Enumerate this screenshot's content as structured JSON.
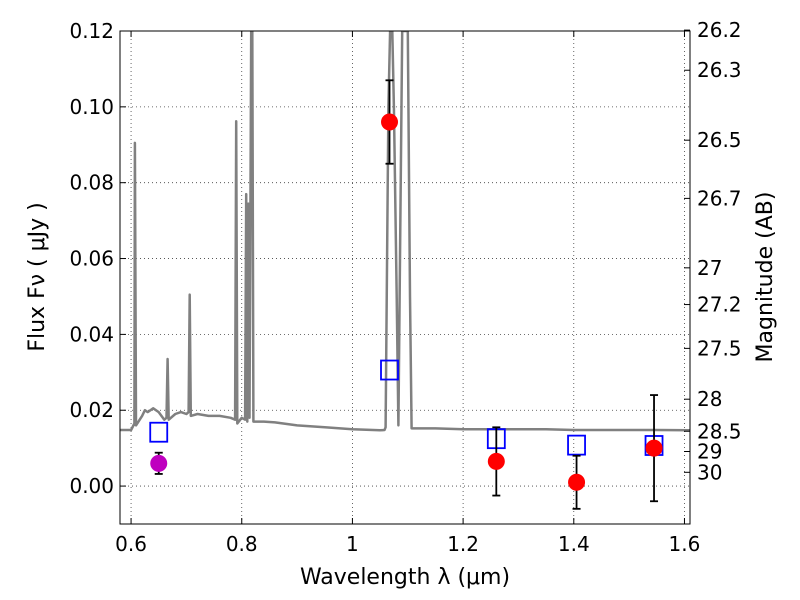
{
  "chart_data": {
    "type": "scatter",
    "xlabel": "Wavelength  λ (μm)",
    "ylabel": "Flux  Fν  ( μJy )",
    "ylabel_right": "Magnitude (AB)",
    "xlim": [
      0.58,
      1.61
    ],
    "ylim": [
      -0.01,
      0.12
    ],
    "grid": true,
    "x_ticks": [
      {
        "value": 0.6,
        "label": "0.6"
      },
      {
        "value": 0.8,
        "label": "0.8"
      },
      {
        "value": 1.0,
        "label": "1"
      },
      {
        "value": 1.2,
        "label": "1.2"
      },
      {
        "value": 1.4,
        "label": "1.4"
      },
      {
        "value": 1.6,
        "label": "1.6"
      }
    ],
    "y_ticks": [
      {
        "value": 0.0,
        "label": "0.00"
      },
      {
        "value": 0.02,
        "label": "0.02"
      },
      {
        "value": 0.04,
        "label": "0.04"
      },
      {
        "value": 0.06,
        "label": "0.06"
      },
      {
        "value": 0.08,
        "label": "0.08"
      },
      {
        "value": 0.1,
        "label": "0.10"
      },
      {
        "value": 0.12,
        "label": "0.12"
      }
    ],
    "right_ticks": [
      {
        "mag": 26.2,
        "label": "26.2"
      },
      {
        "mag": 26.3,
        "label": "26.3"
      },
      {
        "mag": 26.5,
        "label": "26.5"
      },
      {
        "mag": 26.7,
        "label": "26.7"
      },
      {
        "mag": 27.0,
        "label": "27"
      },
      {
        "mag": 27.2,
        "label": "27.2"
      },
      {
        "mag": 27.5,
        "label": "27.5"
      },
      {
        "mag": 28.0,
        "label": "28"
      },
      {
        "mag": 28.5,
        "label": "28.5"
      },
      {
        "mag": 29.0,
        "label": "29"
      },
      {
        "mag": 30.0,
        "label": "30"
      }
    ],
    "series": [
      {
        "kind": "line",
        "color": "#808080",
        "points": [
          [
            0.58,
            0.0148
          ],
          [
            0.6,
            0.0148
          ],
          [
            0.606,
            0.0165
          ],
          [
            0.607,
            0.0905
          ],
          [
            0.609,
            0.016
          ],
          [
            0.62,
            0.0185
          ],
          [
            0.625,
            0.02
          ],
          [
            0.63,
            0.0195
          ],
          [
            0.64,
            0.0205
          ],
          [
            0.65,
            0.0195
          ],
          [
            0.66,
            0.0175
          ],
          [
            0.664,
            0.018
          ],
          [
            0.666,
            0.0335
          ],
          [
            0.668,
            0.0175
          ],
          [
            0.68,
            0.019
          ],
          [
            0.69,
            0.0195
          ],
          [
            0.7,
            0.019
          ],
          [
            0.704,
            0.0195
          ],
          [
            0.706,
            0.0505
          ],
          [
            0.708,
            0.0185
          ],
          [
            0.72,
            0.019
          ],
          [
            0.74,
            0.0185
          ],
          [
            0.76,
            0.0185
          ],
          [
            0.78,
            0.018
          ],
          [
            0.788,
            0.0175
          ],
          [
            0.79,
            0.0962
          ],
          [
            0.792,
            0.0165
          ],
          [
            0.8,
            0.018
          ],
          [
            0.806,
            0.0175
          ],
          [
            0.808,
            0.077
          ],
          [
            0.81,
            0.017
          ],
          [
            0.812,
            0.0745
          ],
          [
            0.814,
            0.018
          ],
          [
            0.817,
            0.12
          ],
          [
            0.819,
            0.12
          ],
          [
            0.821,
            0.017
          ],
          [
            0.84,
            0.017
          ],
          [
            0.86,
            0.0168
          ],
          [
            0.9,
            0.016
          ],
          [
            0.95,
            0.0155
          ],
          [
            1.0,
            0.015
          ],
          [
            1.05,
            0.0147
          ],
          [
            1.058,
            0.0148
          ],
          [
            1.06,
            0.0155
          ],
          [
            1.065,
            0.1
          ],
          [
            1.068,
            0.12
          ],
          [
            1.072,
            0.12
          ],
          [
            1.075,
            0.1
          ],
          [
            1.08,
            0.05
          ],
          [
            1.083,
            0.016
          ],
          [
            1.086,
            0.06
          ],
          [
            1.09,
            0.12
          ],
          [
            1.1,
            0.12
          ],
          [
            1.104,
            0.05
          ],
          [
            1.107,
            0.0152
          ],
          [
            1.15,
            0.0152
          ],
          [
            1.2,
            0.015
          ],
          [
            1.25,
            0.015
          ],
          [
            1.3,
            0.015
          ],
          [
            1.35,
            0.015
          ],
          [
            1.4,
            0.0148
          ],
          [
            1.45,
            0.0148
          ],
          [
            1.5,
            0.0148
          ],
          [
            1.55,
            0.0148
          ],
          [
            1.61,
            0.0147
          ]
        ]
      },
      {
        "kind": "square",
        "color": "#0000ff",
        "points": [
          [
            0.65,
            0.0142
          ],
          [
            1.067,
            0.0306
          ],
          [
            1.26,
            0.0125
          ],
          [
            1.405,
            0.0108
          ],
          [
            1.545,
            0.0107
          ]
        ]
      },
      {
        "kind": "circle",
        "color": "#ff0000",
        "points": [
          {
            "x": 1.067,
            "y": 0.096,
            "err": 0.011
          },
          {
            "x": 1.26,
            "y": 0.0065,
            "err": 0.009
          },
          {
            "x": 1.405,
            "y": 0.001,
            "err": 0.007
          },
          {
            "x": 1.545,
            "y": 0.01,
            "err": 0.014
          }
        ]
      },
      {
        "kind": "circle",
        "color": "#bf00bf",
        "points": [
          {
            "x": 0.65,
            "y": 0.006,
            "err": 0.0028
          }
        ]
      }
    ]
  }
}
